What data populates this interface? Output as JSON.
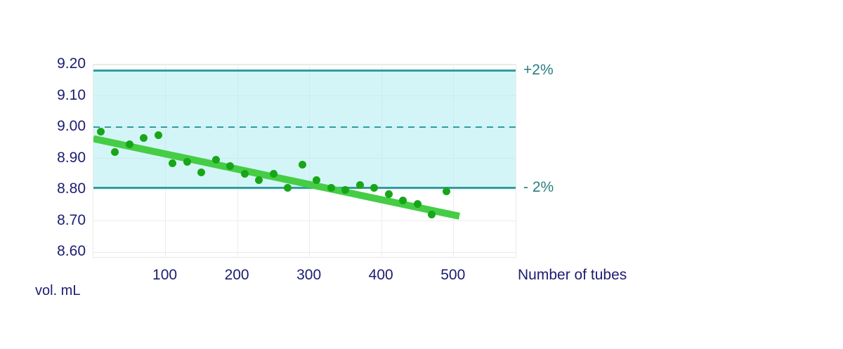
{
  "chart_data": {
    "type": "scatter",
    "title": "",
    "xlabel": "Number of tubes",
    "ylabel": "vol. mL",
    "xlim": [
      0,
      588
    ],
    "ylim": [
      8.58,
      9.2
    ],
    "x_ticks": [
      100,
      200,
      300,
      400,
      500
    ],
    "y_tick_labels": [
      "9.20",
      "9.10",
      "9.00",
      "8.90",
      "8.80",
      "8.70",
      "8.60"
    ],
    "grid": true,
    "legend_position": "none",
    "target_line": {
      "value": 9.0,
      "style": "dashed"
    },
    "upper_limit": {
      "label": "+2%",
      "value": 9.18
    },
    "lower_limit": {
      "label": "- 2%",
      "value": 8.805
    },
    "band": {
      "from": 8.805,
      "to": 9.18
    },
    "points": [
      [
        10,
        8.985
      ],
      [
        30,
        8.92
      ],
      [
        50,
        8.945
      ],
      [
        70,
        8.965
      ],
      [
        90,
        8.975
      ],
      [
        110,
        8.885
      ],
      [
        130,
        8.89
      ],
      [
        150,
        8.855
      ],
      [
        170,
        8.895
      ],
      [
        190,
        8.875
      ],
      [
        210,
        8.85
      ],
      [
        230,
        8.83
      ],
      [
        250,
        8.85
      ],
      [
        270,
        8.805
      ],
      [
        290,
        8.88
      ],
      [
        310,
        8.83
      ],
      [
        330,
        8.805
      ],
      [
        350,
        8.8
      ],
      [
        370,
        8.815
      ],
      [
        390,
        8.805
      ],
      [
        410,
        8.785
      ],
      [
        430,
        8.765
      ],
      [
        450,
        8.755
      ],
      [
        470,
        8.72
      ],
      [
        490,
        8.795
      ]
    ],
    "trend_line": {
      "x1": 0,
      "y1": 8.963,
      "x2": 508,
      "y2": 8.715
    },
    "colors": {
      "point": "#17a617",
      "trend": "#45cd45",
      "band": "rgba(176,237,241,0.55)",
      "limit_line": "#2f9da0",
      "limit_label": "#2a7c7e",
      "axis_text": "#1c1c72",
      "grid": "#ececec"
    }
  }
}
